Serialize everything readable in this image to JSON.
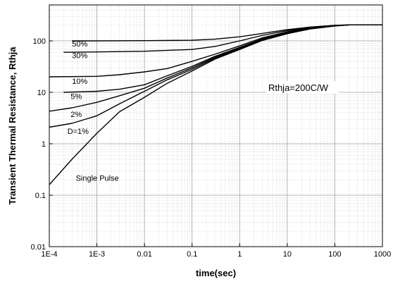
{
  "chart_data": {
    "type": "line",
    "title": "",
    "xlabel": "time(sec)",
    "ylabel": "Transient Thermal Resistance, Rthja",
    "xscale": "log",
    "yscale": "log",
    "xlim": [
      0.0001,
      1000
    ],
    "ylim": [
      0.01,
      500
    ],
    "grid": true,
    "x_tick_labels": [
      "1E-4",
      "1E-3",
      "0.01",
      "0.1",
      "1",
      "10",
      "100",
      "1000"
    ],
    "x_ticks": [
      0.0001,
      0.001,
      0.01,
      0.1,
      1,
      10,
      100,
      1000
    ],
    "y_tick_labels": [
      "0.01",
      "0.1",
      "1",
      "10",
      "100"
    ],
    "y_ticks": [
      0.01,
      0.1,
      1,
      10,
      100
    ],
    "annotation": "Rthja=200C/W",
    "series": [
      {
        "name": "50%",
        "x": [
          0.0003,
          0.001,
          0.01,
          0.1,
          0.3,
          1,
          3,
          10,
          30,
          100,
          200,
          1000
        ],
        "y": [
          100,
          100,
          101,
          103,
          108,
          120,
          140,
          165,
          185,
          200,
          205,
          205
        ]
      },
      {
        "name": "30%",
        "x": [
          0.0002,
          0.001,
          0.01,
          0.1,
          0.3,
          1,
          3,
          10,
          30,
          100,
          200,
          1000
        ],
        "y": [
          60,
          61,
          63,
          68,
          78,
          100,
          128,
          158,
          182,
          200,
          205,
          205
        ]
      },
      {
        "name": "10%",
        "x": [
          0.0001,
          0.001,
          0.003,
          0.01,
          0.03,
          0.1,
          0.3,
          1,
          3,
          10,
          30,
          100,
          200,
          1000
        ],
        "y": [
          20,
          20.5,
          22,
          25,
          29,
          40,
          55,
          80,
          115,
          150,
          178,
          198,
          205,
          205
        ]
      },
      {
        "name": "5%",
        "x": [
          0.0002,
          0.001,
          0.003,
          0.01,
          0.03,
          0.1,
          0.3,
          1,
          3,
          10,
          30,
          100,
          200,
          1000
        ],
        "y": [
          10,
          10.5,
          11.5,
          14,
          21,
          32,
          50,
          75,
          110,
          145,
          175,
          197,
          205,
          205
        ]
      },
      {
        "name": "2%",
        "x": [
          0.0001,
          0.0003,
          0.001,
          0.003,
          0.01,
          0.03,
          0.1,
          0.3,
          1,
          3,
          10,
          30,
          100,
          200,
          1000
        ],
        "y": [
          4.3,
          5,
          6.4,
          8.6,
          12,
          19,
          30,
          48,
          72,
          108,
          143,
          174,
          197,
          205,
          205
        ]
      },
      {
        "name": "D=1%",
        "x": [
          0.0001,
          0.0003,
          0.001,
          0.003,
          0.01,
          0.03,
          0.1,
          0.3,
          1,
          3,
          10,
          30,
          100,
          200,
          1000
        ],
        "y": [
          2.1,
          2.5,
          3.5,
          6,
          10.5,
          17.5,
          28,
          46,
          70,
          105,
          140,
          172,
          196,
          205,
          205
        ]
      },
      {
        "name": "Single Pulse",
        "x": [
          0.0001,
          0.0003,
          0.001,
          0.003,
          0.01,
          0.03,
          0.1,
          0.3,
          1,
          3,
          10,
          30,
          100,
          200,
          1000
        ],
        "y": [
          0.16,
          0.5,
          1.6,
          4.2,
          8,
          15,
          26,
          44,
          68,
          102,
          138,
          170,
          195,
          205,
          205
        ]
      }
    ],
    "labels": [
      {
        "text": "50%",
        "x": 0.0003,
        "y": 78
      },
      {
        "text": "30%",
        "x": 0.0003,
        "y": 46
      },
      {
        "text": "10%",
        "x": 0.0003,
        "y": 14.5
      },
      {
        "text": "5%",
        "x": 0.00028,
        "y": 7.4
      },
      {
        "text": "2%",
        "x": 0.00028,
        "y": 3.3
      },
      {
        "text": "D=1%",
        "x": 0.00024,
        "y": 1.55
      },
      {
        "text": "Single Pulse",
        "x": 0.00036,
        "y": 0.19
      }
    ],
    "annotation_pos": {
      "x": 4,
      "y": 12.5
    },
    "colors": {
      "line": "#000000",
      "grid_major": "#a0a0a0",
      "grid_minor": "#c8c8c8"
    }
  }
}
